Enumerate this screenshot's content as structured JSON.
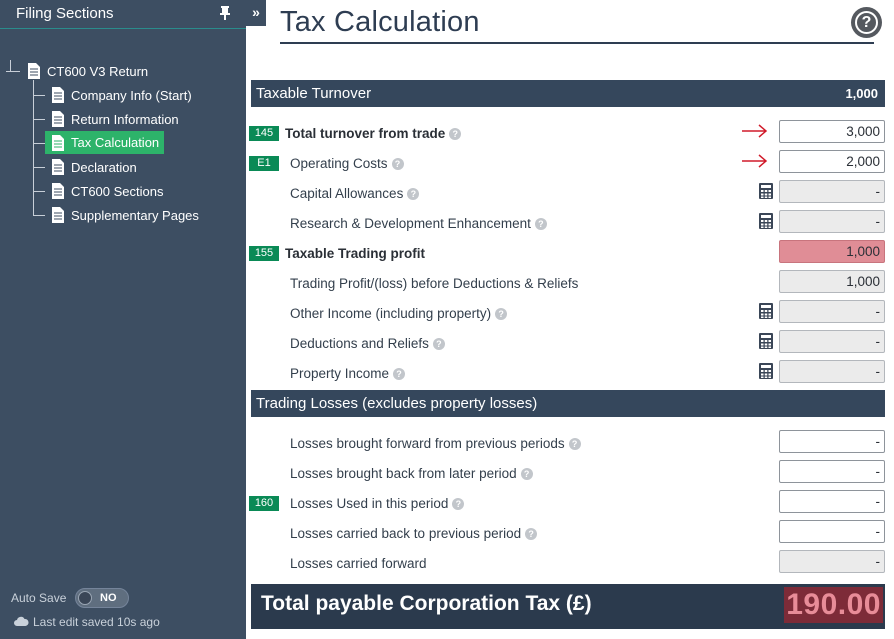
{
  "sidebar": {
    "title": "Filing Sections",
    "root": "CT600 V3 Return",
    "items": [
      {
        "label": "Company Info (Start)"
      },
      {
        "label": "Return Information"
      },
      {
        "label": "Tax Calculation"
      },
      {
        "label": "Declaration"
      },
      {
        "label": "CT600 Sections"
      },
      {
        "label": "Supplementary Pages"
      }
    ],
    "selected_index": 2,
    "autosave": {
      "label": "Auto Save",
      "state": "NO"
    },
    "last_saved": "Last edit saved 10s ago"
  },
  "collapse_glyph": "»",
  "main": {
    "title": "Tax Calculation",
    "help_glyph": "?",
    "sections": {
      "turnover": {
        "title": "Taxable Turnover",
        "value": "1,000"
      },
      "losses": {
        "title": "Trading Losses (excludes property losses)"
      }
    },
    "rows": [
      {
        "badge": "145",
        "label": "Total turnover from trade",
        "value": "3,000",
        "help": true,
        "arrow": true
      },
      {
        "badge": "E1",
        "label": "Operating Costs",
        "value": "2,000",
        "help": true,
        "arrow": true
      },
      {
        "label": "Capital Allowances",
        "value": "-",
        "help": true,
        "calc": true
      },
      {
        "label": "Research & Development Enhancement",
        "value": "-",
        "help": true,
        "calc": true
      },
      {
        "badge": "155",
        "label": "Taxable Trading profit",
        "value": "1,000"
      },
      {
        "label": "Trading Profit/(loss) before Deductions & Reliefs",
        "value": "1,000"
      },
      {
        "label": "Other Income (including property)",
        "value": "-",
        "help": true,
        "calc": true
      },
      {
        "label": "Deductions and Reliefs",
        "value": "-",
        "help": true,
        "calc": true
      },
      {
        "label": "Property Income",
        "value": "-",
        "help": true,
        "calc": true
      },
      {
        "label": "Losses brought forward from previous periods",
        "value": "-",
        "help": true
      },
      {
        "label": "Losses brought back from later period",
        "value": "-",
        "help": true
      },
      {
        "badge": "160",
        "label": "Losses Used in this period",
        "value": "-",
        "help": true
      },
      {
        "label": "Losses carried back to previous period",
        "value": "-",
        "help": true
      },
      {
        "label": "Losses carried forward",
        "value": "-"
      }
    ],
    "total": {
      "label": "Total payable Corporation Tax (£)",
      "value": "190.00"
    }
  },
  "colors": {
    "sidebar_bg": "#3d4e62",
    "selected_item": "#2db36a",
    "badge": "#0a8a56",
    "section_bar": "#35475c",
    "highlight_field": "#e08d96",
    "total_value_bg": "#7d2b38",
    "arrow": "#d11a2a"
  },
  "icons": {
    "pin": "pin-icon",
    "document": "document-icon",
    "calculator": "calculator-icon",
    "help": "help-icon",
    "cloud": "cloud-icon",
    "arrow": "arrow-right-icon"
  }
}
